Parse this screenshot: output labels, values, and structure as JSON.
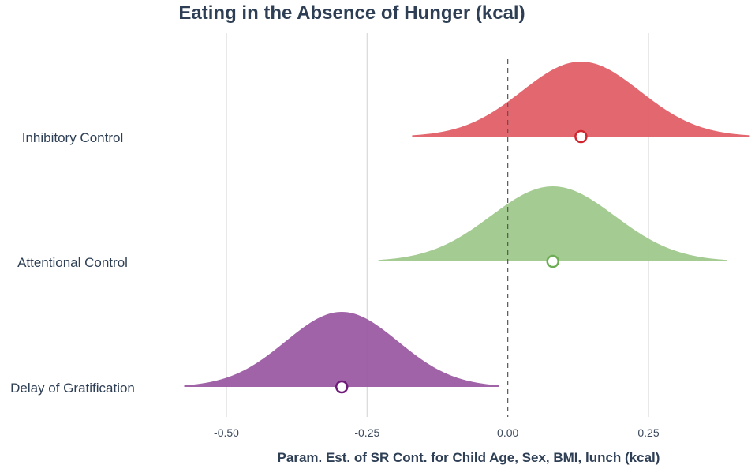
{
  "chart_data": {
    "type": "density-ridge",
    "title": "Eating in the Absence of Hunger (kcal)",
    "xlabel": "Param. Est. of SR Cont. for Child Age, Sex, BMI, lunch (kcal)",
    "ylabel": "",
    "xlim": [
      -0.5,
      0.25
    ],
    "xticks": [
      -0.5,
      -0.25,
      0.0,
      0.25
    ],
    "xtick_labels": [
      "-0.50",
      "-0.25",
      "0.00",
      "0.25"
    ],
    "grid": true,
    "reference_line": 0.0,
    "series": [
      {
        "name": "Inhibitory Control",
        "estimate": 0.13,
        "sd": 0.105,
        "ci": [
          -0.17,
          0.43
        ],
        "color": "#e05a63",
        "point_color": "#d0262f"
      },
      {
        "name": "Attentional Control",
        "estimate": 0.08,
        "sd": 0.11,
        "ci": [
          -0.23,
          0.39
        ],
        "color": "#9cc788",
        "point_color": "#6dae55"
      },
      {
        "name": "Delay of Gratification",
        "estimate": -0.295,
        "sd": 0.1,
        "ci": [
          -0.575,
          -0.015
        ],
        "color": "#98569f",
        "point_color": "#6e1a78"
      }
    ]
  }
}
